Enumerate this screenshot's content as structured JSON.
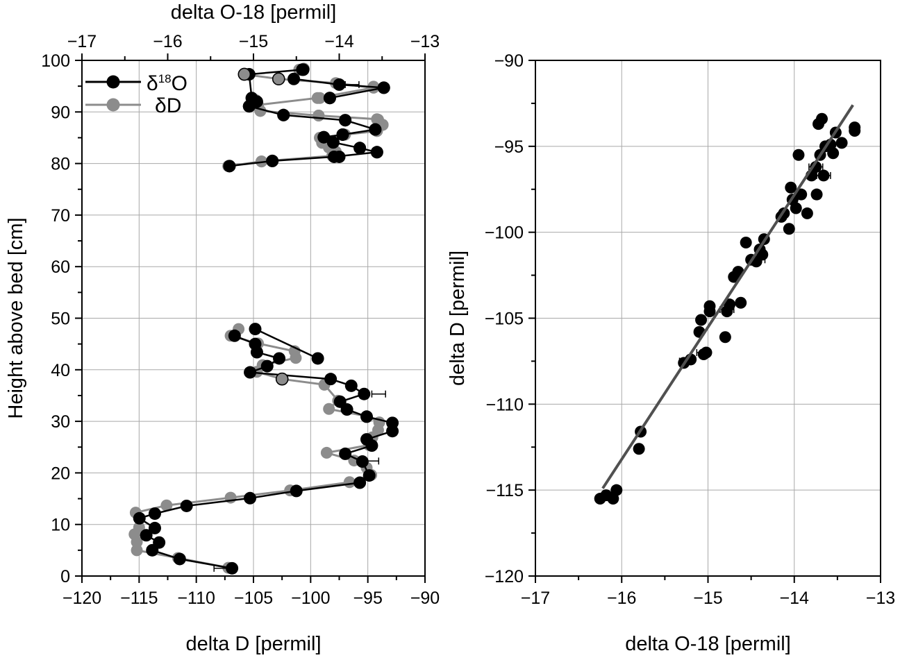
{
  "chart_data": [
    {
      "type": "line",
      "panel": "left",
      "xlabel": "delta D [permil]",
      "x2label": "delta O-18 [permil]",
      "ylabel": "Height above bed [cm]",
      "xlim": [
        -120,
        -90
      ],
      "x2lim": [
        -17,
        -13
      ],
      "ylim": [
        0,
        100
      ],
      "xticks": [
        -120,
        -115,
        -110,
        -105,
        -100,
        -95,
        -90
      ],
      "x2ticks": [
        -17,
        -16,
        -15,
        -14,
        -13
      ],
      "yticks": [
        0,
        10,
        20,
        30,
        40,
        50,
        60,
        70,
        80,
        90,
        100
      ],
      "grid": true,
      "legend_position": "top-left",
      "series": [
        {
          "name": "δ18O",
          "legend_main": "δ",
          "legend_sup": "18",
          "legend_tail": "O",
          "axis": "top",
          "color": "#000000",
          "points": [
            [
              -14.42,
              98.2
            ],
            [
              -13.48,
              94.7
            ],
            [
              -14.11,
              92.7
            ],
            [
              -14.96,
              92.0
            ],
            [
              -15.05,
              91.1
            ],
            [
              -14.65,
              89.4
            ],
            [
              -13.93,
              88.4
            ],
            [
              -13.58,
              86.6
            ],
            [
              -13.96,
              85.6
            ],
            [
              -14.07,
              84.1
            ],
            [
              -14.18,
              85.1
            ],
            [
              -13.76,
              83.0
            ],
            [
              -14.0,
              81.3
            ],
            [
              -13.56,
              82.2
            ],
            [
              -14.78,
              80.5
            ],
            [
              -15.28,
              79.5
            ]
          ],
          "segments": [
            [
              [
                -15.05,
                91.1
              ],
              [
                -15.02,
                92.7
              ],
              [
                -15.05,
                97.3
              ],
              [
                -14.43,
                98.2
              ]
            ],
            [
              [
                -15.28,
                79.5
              ],
              [
                -14.78,
                80.5
              ],
              [
                -14.06,
                81.3
              ],
              [
                -13.56,
                82.2
              ],
              [
                -13.76,
                83.0
              ],
              [
                -14.07,
                84.1
              ],
              [
                -14.18,
                85.1
              ],
              [
                -13.96,
                85.6
              ],
              [
                -13.58,
                86.6
              ],
              [
                -13.93,
                88.4
              ],
              [
                -14.65,
                89.4
              ],
              [
                -15.05,
                91.1
              ]
            ],
            [
              [
                -14.11,
                92.7
              ],
              [
                -13.48,
                94.7
              ],
              [
                -14.0,
                95.3
              ],
              [
                -14.53,
                96.4
              ]
            ],
            [
              [
                -15.22,
                46.6
              ],
              [
                -14.98,
                45.0
              ],
              [
                -14.96,
                43.4
              ],
              [
                -14.7,
                42.2
              ],
              [
                -14.84,
                40.7
              ],
              [
                -15.04,
                39.5
              ],
              [
                -14.1,
                38.2
              ],
              [
                -13.86,
                36.9
              ],
              [
                -13.71,
                35.3
              ],
              [
                -13.99,
                33.8
              ],
              [
                -13.91,
                32.3
              ],
              [
                -13.68,
                30.9
              ],
              [
                -13.38,
                29.7
              ],
              [
                -13.38,
                28.1
              ],
              [
                -13.68,
                26.5
              ],
              [
                -13.62,
                25.3
              ],
              [
                -13.93,
                23.7
              ],
              [
                -13.73,
                22.2
              ],
              [
                -13.65,
                19.5
              ],
              [
                -13.76,
                18.1
              ],
              [
                -14.5,
                16.5
              ],
              [
                -15.04,
                15.1
              ],
              [
                -15.78,
                13.6
              ],
              [
                -16.15,
                12.1
              ],
              [
                -16.33,
                11.2
              ],
              [
                -16.15,
                9.3
              ],
              [
                -16.25,
                7.9
              ],
              [
                -16.1,
                6.5
              ],
              [
                -16.18,
                5.0
              ],
              [
                -15.86,
                3.3
              ],
              [
                -15.25,
                1.5
              ]
            ],
            [
              [
                -14.98,
                47.9
              ],
              [
                -14.25,
                42.2
              ]
            ]
          ],
          "xerr_points": [
            [
              -13.85,
              95.3
            ],
            [
              -13.54,
              35.3
            ],
            [
              -13.62,
              22.3
            ],
            [
              -15.38,
              1.5
            ]
          ]
        },
        {
          "name": "δD",
          "legend_main": "δD",
          "axis": "bottom",
          "color": "#8c8c8c",
          "points": [
            [
              -101.0,
              98.2
            ],
            [
              -100.6,
              98.4
            ],
            [
              -102.8,
              96.4
            ],
            [
              -94.5,
              94.9
            ],
            [
              -99.2,
              92.7
            ],
            [
              -104.8,
              92.3
            ],
            [
              -104.6,
              91.3
            ],
            [
              -104.4,
              90.2
            ],
            [
              -99.3,
              89.3
            ],
            [
              -94.2,
              86.3
            ],
            [
              -93.7,
              87.5
            ],
            [
              -94.1,
              88.5
            ],
            [
              -97.0,
              85.6
            ],
            [
              -98.8,
              84.2
            ],
            [
              -98.4,
              83.1
            ],
            [
              -98.1,
              81.5
            ],
            [
              -97.8,
              82.3
            ],
            [
              -104.3,
              80.4
            ],
            [
              -107.2,
              79.5
            ]
          ],
          "segments": [
            [
              [
                -105.8,
                97.3
              ],
              [
                -102.8,
                96.4
              ],
              [
                -97.8,
                95.6
              ],
              [
                -94.5,
                94.7
              ],
              [
                -99.4,
                92.7
              ],
              [
                -104.8,
                91.3
              ],
              [
                -104.4,
                90.2
              ],
              [
                -99.3,
                89.3
              ],
              [
                -94.2,
                88.6
              ],
              [
                -93.7,
                87.5
              ],
              [
                -94.2,
                86.3
              ],
              [
                -97.0,
                85.6
              ],
              [
                -99.2,
                85.0
              ],
              [
                -99.0,
                84.0
              ],
              [
                -98.4,
                83.1
              ],
              [
                -98.1,
                81.5
              ],
              [
                -104.3,
                80.4
              ],
              [
                -107.2,
                79.5
              ]
            ],
            [
              [
                -106.3,
                47.9
              ],
              [
                -107.0,
                46.6
              ],
              [
                -104.6,
                45.1
              ],
              [
                -101.4,
                43.6
              ],
              [
                -101.3,
                42.3
              ],
              [
                -104.2,
                40.9
              ],
              [
                -104.7,
                39.6
              ],
              [
                -102.5,
                38.2
              ],
              [
                -98.8,
                37.1
              ],
              [
                -97.6,
                34.0
              ],
              [
                -98.4,
                32.4
              ],
              [
                -95.1,
                31.0
              ],
              [
                -94.0,
                29.8
              ],
              [
                -94.1,
                28.3
              ],
              [
                -94.6,
                26.9
              ],
              [
                -94.9,
                25.4
              ],
              [
                -98.6,
                23.9
              ],
              [
                -96.2,
                22.4
              ],
              [
                -95.1,
                21.0
              ],
              [
                -94.7,
                19.6
              ],
              [
                -96.6,
                18.2
              ],
              [
                -101.8,
                16.6
              ],
              [
                -107.0,
                15.2
              ],
              [
                -112.6,
                13.7
              ],
              [
                -115.3,
                12.3
              ],
              [
                -115.0,
                9.4
              ],
              [
                -115.4,
                8.1
              ],
              [
                -115.2,
                6.6
              ],
              [
                -115.2,
                5.0
              ],
              [
                -111.6,
                3.5
              ],
              [
                -107.2,
                1.6
              ]
            ]
          ],
          "open_markers": [
            [
              -105.8,
              97.3
            ],
            [
              -102.8,
              96.4
            ],
            [
              -102.5,
              38.2
            ]
          ]
        }
      ]
    },
    {
      "type": "scatter",
      "panel": "right",
      "xlabel": "delta O-18 [permil]",
      "ylabel": "delta D [permil]",
      "xlim": [
        -17,
        -13
      ],
      "ylim": [
        -120,
        -90
      ],
      "xticks": [
        -17,
        -16,
        -15,
        -14,
        -13
      ],
      "yticks": [
        -120,
        -115,
        -110,
        -105,
        -100,
        -95,
        -90
      ],
      "grid": true,
      "points": [
        [
          -16.25,
          -115.5
        ],
        [
          -16.18,
          -115.3
        ],
        [
          -16.1,
          -115.5
        ],
        [
          -16.06,
          -115.0
        ],
        [
          -15.78,
          -111.6
        ],
        [
          -15.8,
          -112.6
        ],
        [
          -15.28,
          -107.6
        ],
        [
          -15.2,
          -107.4
        ],
        [
          -15.05,
          -107.1
        ],
        [
          -15.02,
          -107.0
        ],
        [
          -15.1,
          -105.8
        ],
        [
          -15.08,
          -105.1
        ],
        [
          -14.98,
          -104.6
        ],
        [
          -14.98,
          -104.3
        ],
        [
          -14.8,
          -106.1
        ],
        [
          -14.78,
          -104.6
        ],
        [
          -14.75,
          -104.2
        ],
        [
          -14.62,
          -104.1
        ],
        [
          -14.7,
          -102.6
        ],
        [
          -14.65,
          -102.3
        ],
        [
          -14.56,
          -100.6
        ],
        [
          -14.5,
          -101.6
        ],
        [
          -14.44,
          -101.7
        ],
        [
          -14.4,
          -101.0
        ],
        [
          -14.37,
          -101.3
        ],
        [
          -14.35,
          -100.4
        ],
        [
          -14.15,
          -99.1
        ],
        [
          -14.12,
          -98.9
        ],
        [
          -14.06,
          -99.8
        ],
        [
          -14.02,
          -98.1
        ],
        [
          -14.04,
          -97.4
        ],
        [
          -13.98,
          -98.6
        ],
        [
          -13.95,
          -95.5
        ],
        [
          -13.92,
          -97.8
        ],
        [
          -13.85,
          -98.9
        ],
        [
          -13.8,
          -96.7
        ],
        [
          -13.75,
          -96.2
        ],
        [
          -13.74,
          -97.8
        ],
        [
          -13.72,
          -93.7
        ],
        [
          -13.7,
          -95.5
        ],
        [
          -13.68,
          -93.4
        ],
        [
          -13.66,
          -96.7
        ],
        [
          -13.64,
          -95.0
        ],
        [
          -13.58,
          -94.9
        ],
        [
          -13.55,
          -95.4
        ],
        [
          -13.52,
          -94.2
        ],
        [
          -13.45,
          -94.8
        ],
        [
          -13.3,
          -93.9
        ],
        [
          -13.3,
          -94.1
        ]
      ],
      "xerr_points": [
        [
          -16.15,
          -115.3
        ],
        [
          -15.25,
          -107.5
        ],
        [
          -15.05,
          -107.0
        ],
        [
          -14.78,
          -104.5
        ],
        [
          -14.42,
          -101.6
        ],
        [
          -13.75,
          -96.2
        ],
        [
          -13.66,
          -96.7
        ]
      ],
      "fit_line": {
        "x": [
          -16.22,
          -13.32
        ],
        "y": [
          -114.9,
          -92.6
        ]
      }
    }
  ]
}
